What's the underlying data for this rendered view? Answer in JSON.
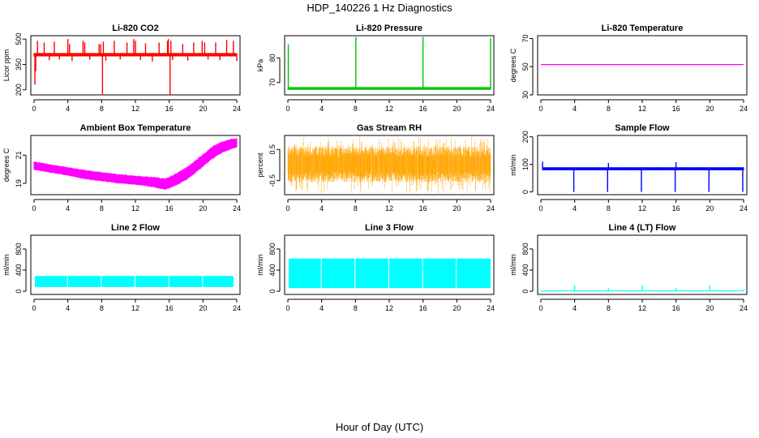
{
  "page": {
    "title": "HDP_140226  1 Hz Diagnostics",
    "x_label": "Hour of Day (UTC)"
  },
  "chart_data": [
    {
      "type": "line",
      "title": "Li-820 CO2",
      "ylabel": "Licor ppm",
      "color": "#ff0000",
      "xlim": [
        0,
        24
      ],
      "ylim": [
        170,
        520
      ],
      "yticks": [
        200,
        350,
        500
      ],
      "xticks": [
        0,
        4,
        8,
        12,
        16,
        20,
        24
      ],
      "series": [
        {
          "kind": "band",
          "x": [
            0,
            24
          ],
          "low": [
            400,
            400
          ],
          "high": [
            415,
            415
          ]
        },
        {
          "kind": "spikes",
          "x": [
            0.1,
            0.2,
            0.4,
            1.2,
            2.4,
            4.0,
            4.2,
            5.8,
            6.0,
            7.7,
            7.9,
            8.2,
            9.5,
            11.0,
            11.8,
            12.0,
            13.2,
            14.8,
            15.8,
            15.9,
            16.2,
            17.6,
            18.9,
            19.9,
            20.2,
            21.5,
            22.8,
            23.6
          ],
          "y": [
            230,
            310,
            490,
            480,
            485,
            500,
            470,
            490,
            480,
            470,
            470,
            485,
            490,
            480,
            500,
            490,
            475,
            480,
            490,
            500,
            490,
            470,
            480,
            490,
            480,
            480,
            495,
            490
          ]
        },
        {
          "kind": "spikes",
          "x": [
            1.8,
            3.0,
            4.5,
            6.6,
            8.5,
            10.2,
            12.6,
            14.0,
            16.4,
            18.2,
            20.6,
            22.0,
            24.0
          ],
          "y": [
            375,
            380,
            370,
            378,
            372,
            380,
            375,
            368,
            376,
            372,
            380,
            375,
            370
          ]
        },
        {
          "kind": "spikes",
          "x": [
            8.1,
            16.1
          ],
          "y": [
            170,
            170
          ]
        }
      ]
    },
    {
      "type": "line",
      "title": "Li-820 Pressure",
      "ylabel": "kPa",
      "color": "#00c800",
      "xlim": [
        0,
        24
      ],
      "ylim": [
        65,
        89
      ],
      "yticks": [
        70,
        80
      ],
      "xticks": [
        0,
        4,
        8,
        12,
        16,
        20,
        24
      ],
      "series": [
        {
          "kind": "band",
          "x": [
            0,
            24
          ],
          "low": [
            67.2,
            67.2
          ],
          "high": [
            68.0,
            68.0
          ]
        },
        {
          "kind": "spikes",
          "x": [
            0.05,
            8.05,
            16.0,
            24.0
          ],
          "y": [
            85.5,
            88.5,
            88.5,
            88.0
          ]
        }
      ]
    },
    {
      "type": "line",
      "title": "Li-820 Temperature",
      "ylabel": "degrees C",
      "color": "#ff00ff",
      "xlim": [
        0,
        24
      ],
      "ylim": [
        30,
        72
      ],
      "yticks": [
        30,
        50,
        70
      ],
      "xticks": [
        0,
        4,
        8,
        12,
        16,
        20,
        24
      ],
      "series": [
        {
          "kind": "line",
          "x": [
            0,
            24
          ],
          "y": [
            51.5,
            51.5
          ]
        }
      ]
    },
    {
      "type": "line",
      "title": "Ambient Box Temperature",
      "ylabel": "degrees C",
      "color": "#ff00ff",
      "xlim": [
        0,
        24
      ],
      "ylim": [
        18.2,
        22.4
      ],
      "yticks": [
        19,
        21
      ],
      "xticks": [
        0,
        4,
        8,
        12,
        16,
        20,
        24
      ],
      "series": [
        {
          "kind": "band",
          "x": [
            0,
            2,
            4,
            6,
            8,
            10,
            12,
            14,
            15.5,
            16,
            17,
            18,
            19,
            20,
            21,
            22,
            23,
            24
          ],
          "low": [
            20.0,
            19.8,
            19.6,
            19.35,
            19.2,
            19.05,
            18.95,
            18.8,
            18.6,
            18.7,
            18.95,
            19.3,
            19.75,
            20.25,
            20.75,
            21.15,
            21.4,
            21.6
          ],
          "high": [
            20.5,
            20.3,
            20.1,
            19.9,
            19.75,
            19.6,
            19.5,
            19.4,
            19.3,
            19.4,
            19.7,
            20.05,
            20.5,
            21.0,
            21.5,
            21.85,
            22.05,
            22.15
          ]
        }
      ]
    },
    {
      "type": "line",
      "title": "Gas Stream RH",
      "ylabel": "percent",
      "color": "#ffa500",
      "xlim": [
        0,
        24
      ],
      "ylim": [
        -0.95,
        0.95
      ],
      "yticks": [
        -0.5,
        0.5
      ],
      "xticks": [
        0,
        4,
        8,
        12,
        16,
        20,
        24
      ],
      "series": [
        {
          "kind": "noise",
          "x": [
            0,
            24
          ],
          "low": [
            -0.55,
            -0.55
          ],
          "high": [
            0.6,
            0.6
          ],
          "min": -0.9,
          "max": 0.9
        }
      ]
    },
    {
      "type": "line",
      "title": "Sample Flow",
      "ylabel": "ml/min",
      "color": "#0000ff",
      "xlim": [
        0,
        24
      ],
      "ylim": [
        -10,
        205
      ],
      "yticks": [
        0,
        100,
        200
      ],
      "xticks": [
        0,
        4,
        8,
        12,
        16,
        20,
        24
      ],
      "series": [
        {
          "kind": "band",
          "x": [
            0.2,
            24
          ],
          "low": [
            80,
            80
          ],
          "high": [
            88,
            88
          ]
        },
        {
          "kind": "spikes",
          "x": [
            0.2,
            3.9,
            7.9,
            11.9,
            15.9,
            19.9,
            23.9
          ],
          "y": [
            110,
            0,
            0,
            0,
            0,
            0,
            0
          ]
        },
        {
          "kind": "spikes",
          "x": [
            8.0,
            16.0
          ],
          "y": [
            105,
            108
          ]
        }
      ]
    },
    {
      "type": "area",
      "title": "Line 2 Flow",
      "ylabel": "ml/min",
      "color": "#00ffff",
      "xlim": [
        0,
        24
      ],
      "ylim": [
        -60,
        1060
      ],
      "yticks": [
        0,
        400,
        800
      ],
      "xticks": [
        0,
        4,
        8,
        12,
        16,
        20,
        24
      ],
      "series": [
        {
          "kind": "blocks",
          "starts": [
            0.1,
            4.0,
            8.0,
            12.0,
            16.0,
            20.0
          ],
          "ends": [
            3.9,
            7.9,
            11.9,
            15.9,
            19.9,
            23.6
          ],
          "low": 80,
          "high": 290
        }
      ]
    },
    {
      "type": "area",
      "title": "Line 3 Flow",
      "ylabel": "ml/min",
      "color": "#00ffff",
      "xlim": [
        0,
        24
      ],
      "ylim": [
        -60,
        1060
      ],
      "yticks": [
        0,
        400,
        800
      ],
      "xticks": [
        0,
        4,
        8,
        12,
        16,
        20,
        24
      ],
      "series": [
        {
          "kind": "blocks",
          "starts": [
            0.1,
            4.0,
            8.0,
            12.0,
            16.0,
            20.0
          ],
          "ends": [
            3.9,
            7.9,
            11.9,
            15.9,
            19.9,
            24.0
          ],
          "low": 60,
          "high": 620
        }
      ]
    },
    {
      "type": "line",
      "title": "Line 4 (LT) Flow",
      "ylabel": "ml/min",
      "color": "#00ffff",
      "xlim": [
        0,
        24
      ],
      "ylim": [
        -60,
        1060
      ],
      "yticks": [
        0,
        400,
        800
      ],
      "xticks": [
        0,
        4,
        8,
        12,
        16,
        20,
        24
      ],
      "series": [
        {
          "kind": "line",
          "x": [
            0,
            24
          ],
          "y": [
            5,
            5
          ]
        },
        {
          "kind": "spikes",
          "x": [
            4.0,
            8.0,
            12.0,
            16.0,
            20.0,
            24.0
          ],
          "y": [
            110,
            60,
            110,
            60,
            110,
            40
          ]
        }
      ]
    }
  ]
}
